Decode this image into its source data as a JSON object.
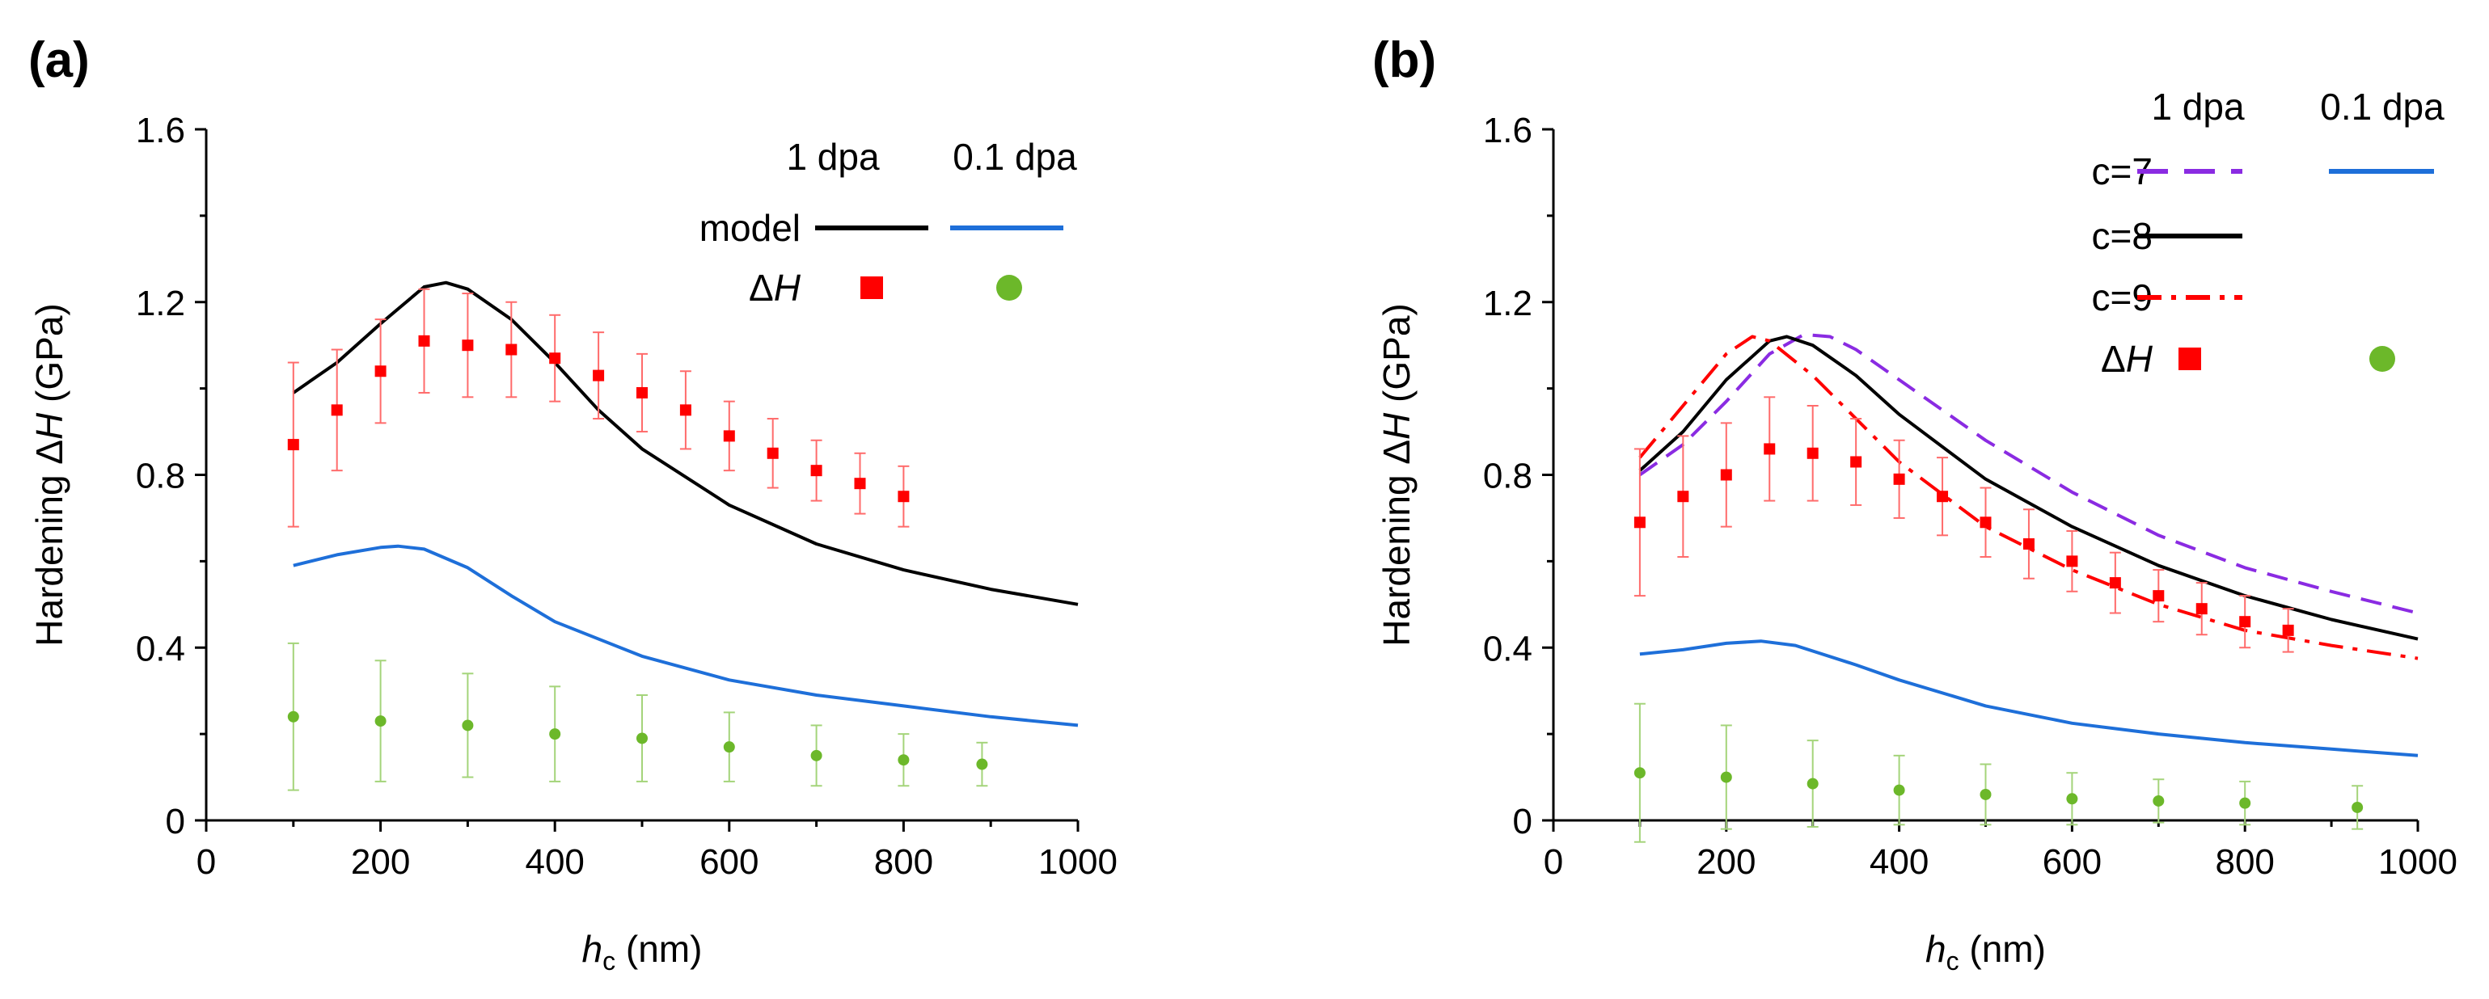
{
  "chart_data": [
    {
      "type": "line",
      "panel_label": "(a)",
      "xlabel": {
        "main": "h",
        "sub": "c",
        "unit": " (nm)"
      },
      "ylabel": {
        "prefix": "Hardening Δ",
        "italic": "H",
        "unit": " (GPa)"
      },
      "xlim": [
        0,
        1000
      ],
      "ylim": [
        0,
        1.6
      ],
      "xticks": [
        0,
        200,
        400,
        600,
        800,
        1000
      ],
      "yticks": [
        0,
        0.4,
        0.8,
        1.2,
        1.6
      ],
      "xtick_labels": [
        "0",
        "200",
        "400",
        "600",
        "800",
        "1000"
      ],
      "ytick_labels": [
        "0",
        "0.4",
        "0.8",
        "1.2",
        "1.6"
      ],
      "legend": {
        "col_headers": [
          "1 dpa",
          "0.1 dpa"
        ],
        "rows": [
          {
            "label": "model",
            "items": [
              {
                "kind": "line",
                "color": "#000000",
                "dash": "solid"
              },
              {
                "kind": "line",
                "color": "#1e6fd9",
                "dash": "solid"
              }
            ]
          },
          {
            "label": "Δ",
            "label_italic": "H",
            "items": [
              {
                "kind": "square",
                "color": "#ff0000"
              },
              {
                "kind": "circle",
                "color": "#6cb82a"
              }
            ]
          }
        ]
      },
      "series": [
        {
          "name": "model 1 dpa",
          "kind": "line",
          "color": "#000000",
          "dash": "solid",
          "x": [
            100,
            150,
            200,
            250,
            275,
            300,
            350,
            400,
            450,
            500,
            600,
            700,
            800,
            900,
            1000
          ],
          "y": [
            0.99,
            1.06,
            1.15,
            1.235,
            1.245,
            1.23,
            1.16,
            1.06,
            0.95,
            0.86,
            0.73,
            0.64,
            0.58,
            0.535,
            0.5
          ]
        },
        {
          "name": "model 0.1 dpa",
          "kind": "line",
          "color": "#1e6fd9",
          "dash": "solid",
          "x": [
            100,
            150,
            200,
            220,
            250,
            300,
            350,
            400,
            500,
            600,
            700,
            800,
            900,
            1000
          ],
          "y": [
            0.59,
            0.615,
            0.632,
            0.635,
            0.628,
            0.585,
            0.52,
            0.46,
            0.38,
            0.325,
            0.29,
            0.265,
            0.24,
            0.22
          ]
        },
        {
          "name": "ΔH 1 dpa",
          "kind": "markers",
          "marker": "square",
          "color": "#ff0000",
          "errcolor": "#ff6b6b",
          "x": [
            100,
            150,
            200,
            250,
            300,
            350,
            400,
            450,
            500,
            550,
            600,
            650,
            700,
            750,
            800
          ],
          "y": [
            0.87,
            0.95,
            1.04,
            1.11,
            1.1,
            1.09,
            1.07,
            1.03,
            0.99,
            0.95,
            0.89,
            0.85,
            0.81,
            0.78,
            0.75
          ],
          "err": [
            0.19,
            0.14,
            0.12,
            0.12,
            0.12,
            0.11,
            0.1,
            0.1,
            0.09,
            0.09,
            0.08,
            0.08,
            0.07,
            0.07,
            0.07
          ]
        },
        {
          "name": "ΔH 0.1 dpa",
          "kind": "markers",
          "marker": "circle",
          "color": "#6cb82a",
          "errcolor": "#a4d47a",
          "x": [
            100,
            200,
            300,
            400,
            500,
            600,
            700,
            800,
            890
          ],
          "y": [
            0.24,
            0.23,
            0.22,
            0.2,
            0.19,
            0.17,
            0.15,
            0.14,
            0.13
          ],
          "err": [
            0.17,
            0.14,
            0.12,
            0.11,
            0.1,
            0.08,
            0.07,
            0.06,
            0.05
          ]
        }
      ]
    },
    {
      "type": "line",
      "panel_label": "(b)",
      "xlabel": {
        "main": "h",
        "sub": "c",
        "unit": " (nm)"
      },
      "ylabel": {
        "prefix": "Hardening Δ",
        "italic": "H",
        "unit": " (GPa)"
      },
      "xlim": [
        0,
        1000
      ],
      "ylim": [
        0,
        1.6
      ],
      "xticks": [
        0,
        200,
        400,
        600,
        800,
        1000
      ],
      "yticks": [
        0,
        0.4,
        0.8,
        1.2,
        1.6
      ],
      "xtick_labels": [
        "0",
        "200",
        "400",
        "600",
        "800",
        "1000"
      ],
      "ytick_labels": [
        "0",
        "0.4",
        "0.8",
        "1.2",
        "1.6"
      ],
      "legend": {
        "col_headers": [
          "1 dpa",
          "0.1 dpa"
        ],
        "rows": [
          {
            "label": "c=7",
            "items": [
              {
                "kind": "line",
                "color": "#8a2be2",
                "dash": "dash"
              },
              {
                "kind": "line",
                "color": "#1e6fd9",
                "dash": "solid"
              }
            ]
          },
          {
            "label": "c=8",
            "items": [
              {
                "kind": "line",
                "color": "#000000",
                "dash": "solid"
              },
              null
            ]
          },
          {
            "label": "c=9",
            "items": [
              {
                "kind": "line",
                "color": "#ff0000",
                "dash": "dashdot"
              },
              null
            ]
          },
          {
            "label": "Δ",
            "label_italic": "H",
            "items": [
              {
                "kind": "square",
                "color": "#ff0000"
              },
              {
                "kind": "circle",
                "color": "#6cb82a"
              }
            ]
          }
        ]
      },
      "series": [
        {
          "name": "c=7 1 dpa",
          "kind": "line",
          "color": "#8a2be2",
          "dash": "dash",
          "x": [
            100,
            150,
            200,
            250,
            290,
            320,
            350,
            400,
            500,
            600,
            700,
            800,
            900,
            1000
          ],
          "y": [
            0.8,
            0.87,
            0.97,
            1.08,
            1.125,
            1.12,
            1.09,
            1.02,
            0.88,
            0.76,
            0.66,
            0.585,
            0.53,
            0.48
          ]
        },
        {
          "name": "c=8 1 dpa",
          "kind": "line",
          "color": "#000000",
          "dash": "solid",
          "x": [
            100,
            150,
            200,
            250,
            270,
            300,
            350,
            400,
            500,
            600,
            700,
            800,
            900,
            1000
          ],
          "y": [
            0.81,
            0.9,
            1.02,
            1.11,
            1.12,
            1.1,
            1.03,
            0.94,
            0.79,
            0.68,
            0.59,
            0.52,
            0.465,
            0.42
          ]
        },
        {
          "name": "c=9 1 dpa",
          "kind": "line",
          "color": "#ff0000",
          "dash": "dashdot",
          "x": [
            100,
            150,
            200,
            230,
            250,
            300,
            350,
            400,
            500,
            600,
            700,
            800,
            900,
            1000
          ],
          "y": [
            0.84,
            0.96,
            1.08,
            1.12,
            1.11,
            1.03,
            0.93,
            0.83,
            0.68,
            0.58,
            0.5,
            0.44,
            0.405,
            0.375
          ]
        },
        {
          "name": "model 0.1 dpa",
          "kind": "line",
          "color": "#1e6fd9",
          "dash": "solid",
          "x": [
            100,
            150,
            200,
            240,
            280,
            350,
            400,
            500,
            600,
            700,
            800,
            900,
            1000
          ],
          "y": [
            0.385,
            0.395,
            0.41,
            0.415,
            0.405,
            0.36,
            0.325,
            0.265,
            0.225,
            0.2,
            0.18,
            0.165,
            0.15
          ]
        },
        {
          "name": "ΔH 1 dpa",
          "kind": "markers",
          "marker": "square",
          "color": "#ff0000",
          "errcolor": "#ff6b6b",
          "x": [
            100,
            150,
            200,
            250,
            300,
            350,
            400,
            450,
            500,
            550,
            600,
            650,
            700,
            750,
            800,
            850
          ],
          "y": [
            0.69,
            0.75,
            0.8,
            0.86,
            0.85,
            0.83,
            0.79,
            0.75,
            0.69,
            0.64,
            0.6,
            0.55,
            0.52,
            0.49,
            0.46,
            0.44
          ],
          "err": [
            0.17,
            0.14,
            0.12,
            0.12,
            0.11,
            0.1,
            0.09,
            0.09,
            0.08,
            0.08,
            0.07,
            0.07,
            0.06,
            0.06,
            0.06,
            0.05
          ]
        },
        {
          "name": "ΔH 0.1 dpa",
          "kind": "markers",
          "marker": "circle",
          "color": "#6cb82a",
          "errcolor": "#a4d47a",
          "x": [
            100,
            200,
            300,
            400,
            500,
            600,
            700,
            800,
            930
          ],
          "y": [
            0.11,
            0.1,
            0.085,
            0.07,
            0.06,
            0.05,
            0.045,
            0.04,
            0.03
          ],
          "err": [
            0.16,
            0.12,
            0.1,
            0.08,
            0.07,
            0.06,
            0.05,
            0.05,
            0.05
          ]
        }
      ]
    }
  ]
}
